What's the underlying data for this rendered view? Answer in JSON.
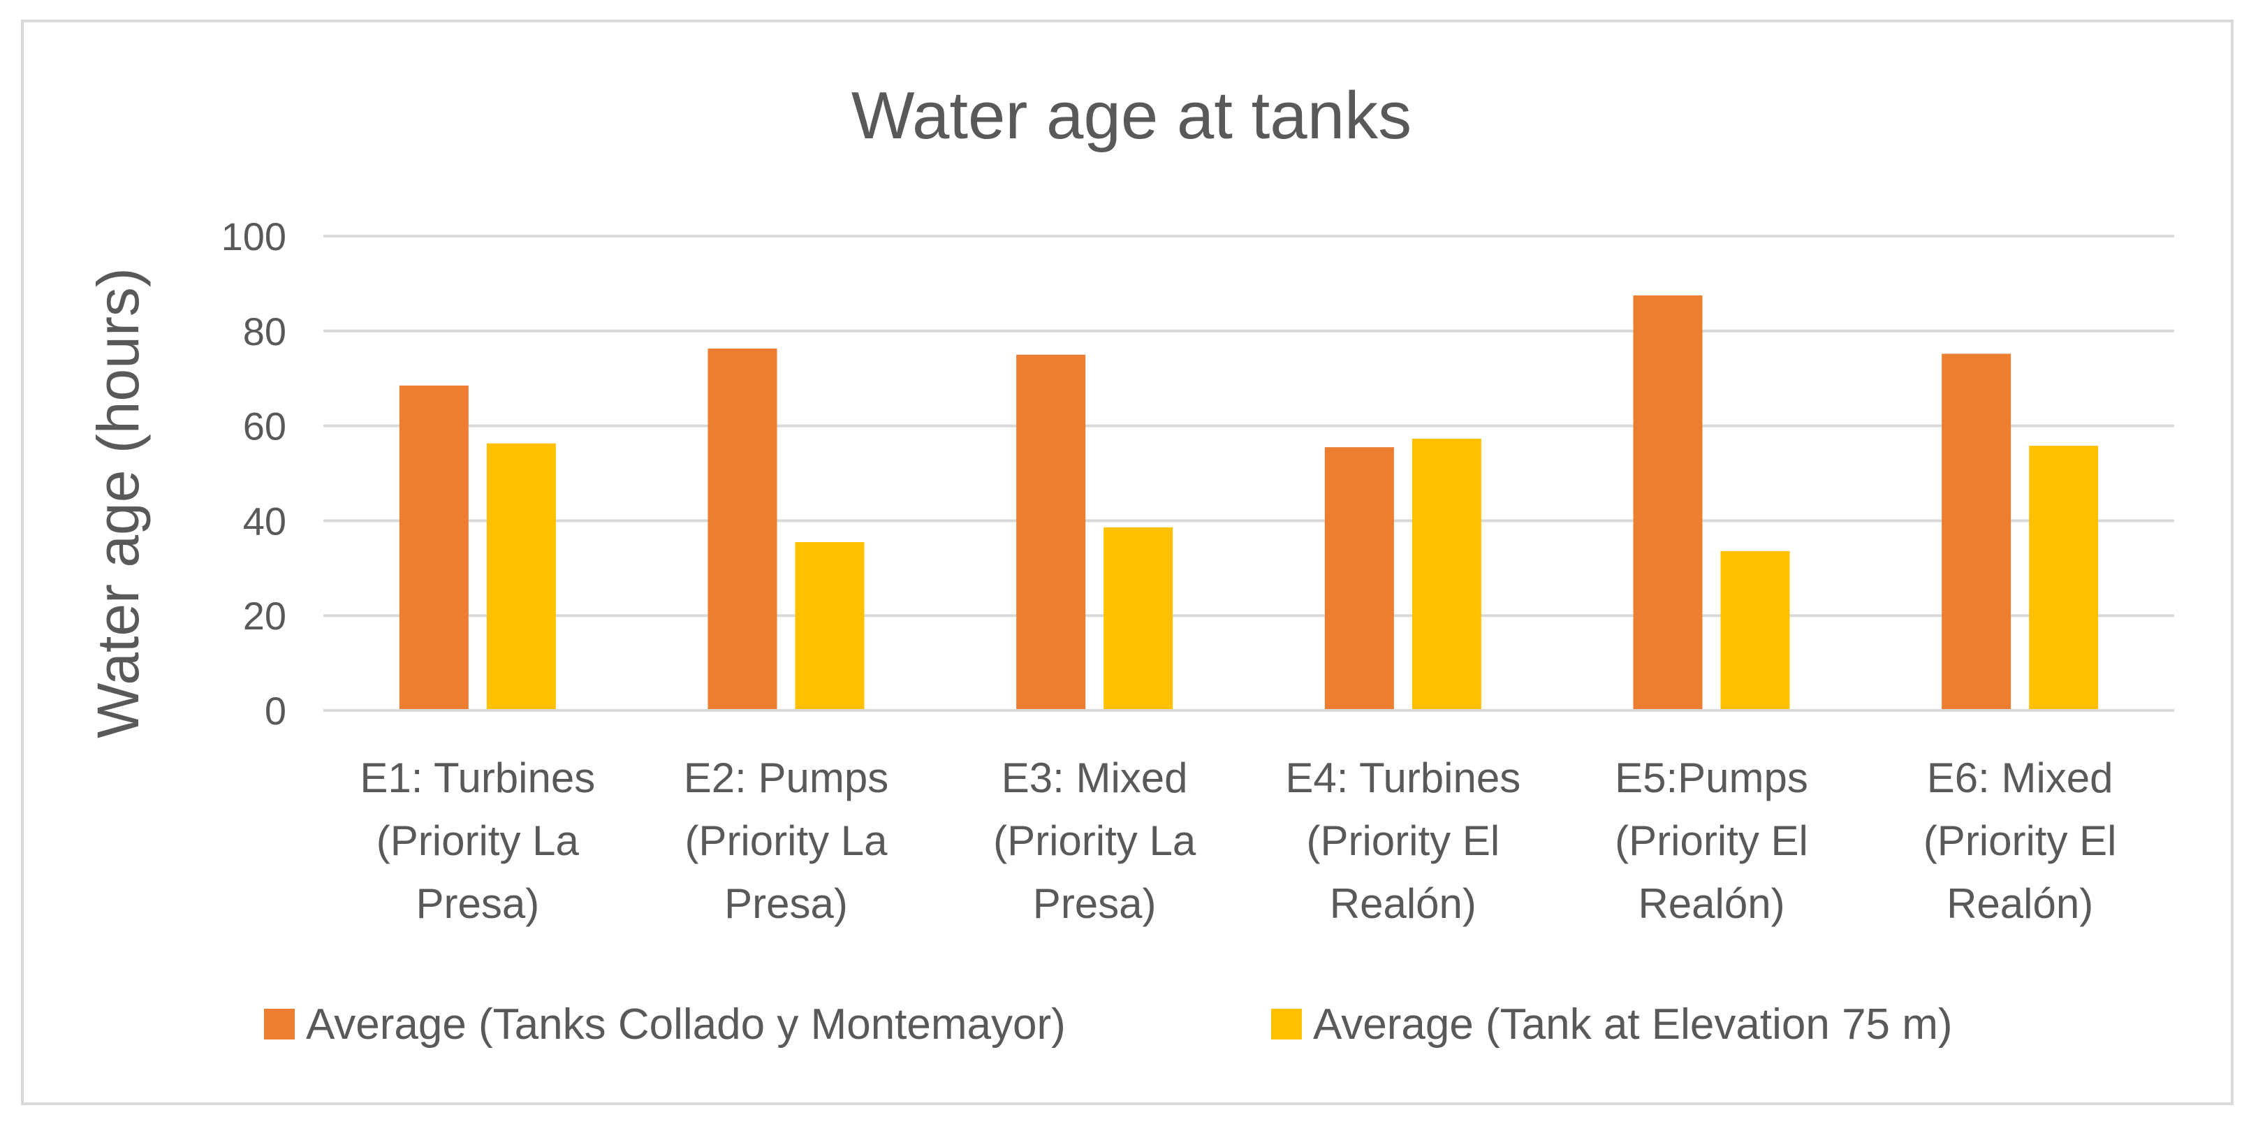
{
  "chart_data": {
    "type": "bar",
    "title": "Water age at tanks",
    "xlabel": "",
    "ylabel": "Water age (hours)",
    "ylim": [
      0,
      100
    ],
    "yticks": [
      0,
      20,
      40,
      60,
      80,
      100
    ],
    "grid": true,
    "legend_position": "bottom",
    "categories": [
      [
        "E1: Turbines",
        "(Priority La",
        "Presa)"
      ],
      [
        "E2: Pumps",
        "(Priority La",
        "Presa)"
      ],
      [
        "E3: Mixed",
        "(Priority La",
        "Presa)"
      ],
      [
        "E4: Turbines",
        "(Priority El",
        "Realón)"
      ],
      [
        "E5:Pumps",
        "(Priority El",
        "Realón)"
      ],
      [
        "E6: Mixed",
        "(Priority El",
        "Realón)"
      ]
    ],
    "series": [
      {
        "name": "Average (Tanks Collado y Montemayor)",
        "color": "#ED7D31",
        "values": [
          68.5,
          76.3,
          75.0,
          55.5,
          87.5,
          75.2
        ]
      },
      {
        "name": "Average (Tank at Elevation 75 m)",
        "color": "#FFC000",
        "values": [
          56.3,
          35.5,
          38.6,
          57.3,
          33.6,
          55.8
        ]
      }
    ]
  }
}
